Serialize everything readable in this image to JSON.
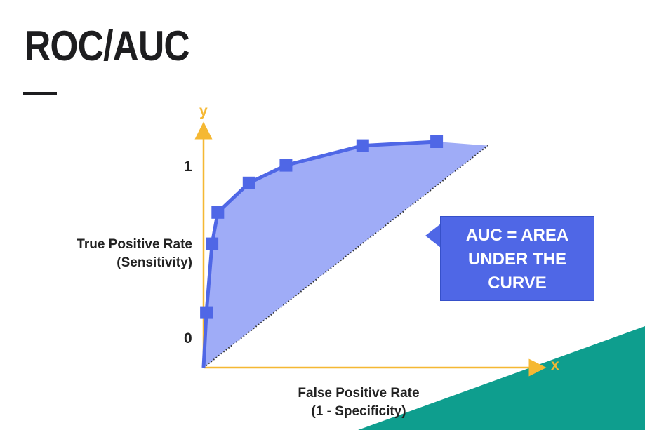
{
  "slide": {
    "title": "ROC/AUC"
  },
  "chart_data": {
    "type": "line",
    "ylabel_line1": "True Positive Rate",
    "ylabel_line2": "(Sensitivity)",
    "xlabel_line1": "False Positive Rate",
    "xlabel_line2": "(1 - Specificity)",
    "x_axis_letter": "x",
    "y_axis_letter": "y",
    "y_ticks": [
      "1",
      "0"
    ],
    "series": [
      {
        "name": "ROC curve",
        "x": [
          0.0,
          0.01,
          0.03,
          0.05,
          0.16,
          0.29,
          0.56,
          0.82,
          1.0
        ],
        "y": [
          0.0,
          0.28,
          0.63,
          0.79,
          0.94,
          1.03,
          1.13,
          1.15,
          1.13
        ]
      },
      {
        "name": "Random classifier",
        "x": [
          0.0,
          1.0
        ],
        "y": [
          0.0,
          1.13
        ],
        "style": "dotted"
      }
    ],
    "marker_indices": [
      1,
      2,
      3,
      4,
      5,
      6,
      7
    ],
    "colors": {
      "curve": "#4f67e6",
      "fill": "#9aa8f7",
      "axis": "#f5b833",
      "diagonal": "#333333",
      "teal": "#0e9e8e"
    }
  },
  "callout": {
    "line1": "AUC = AREA",
    "line2": "UNDER THE",
    "line3": "CURVE"
  }
}
